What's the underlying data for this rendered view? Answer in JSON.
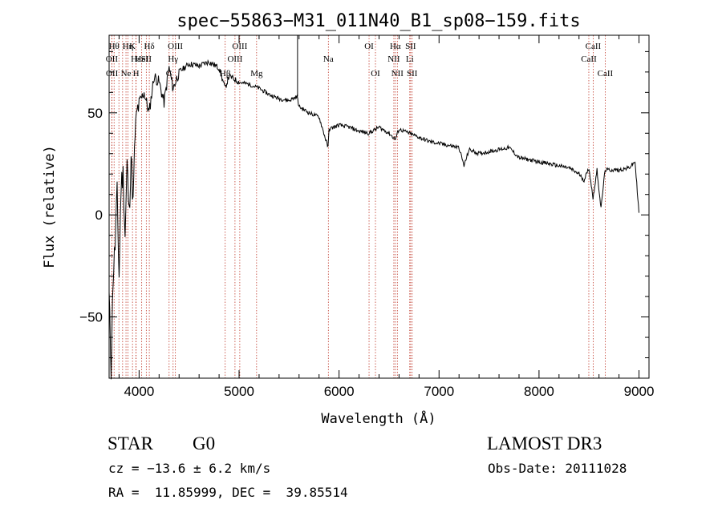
{
  "chart_data": {
    "type": "line",
    "title": "spec−55863−M31_011N40_B1_sp08−159.fits",
    "xlabel": "Wavelength (Å)",
    "ylabel": "Flux (relative)",
    "xlim": [
      3700,
      9100
    ],
    "ylim": [
      -80,
      88
    ],
    "xticks": [
      4000,
      5000,
      6000,
      7000,
      8000,
      9000
    ],
    "xtick_labels": [
      "4000",
      "5000",
      "6000",
      "7000",
      "8000",
      "9000"
    ],
    "yticks": [
      -50,
      0,
      50
    ],
    "ytick_labels": [
      "−50",
      "0",
      "50"
    ],
    "grid": false,
    "legend": "none",
    "series": [
      {
        "name": "spectrum",
        "x": [
          3700,
          3720,
          3740,
          3760,
          3780,
          3800,
          3820,
          3840,
          3860,
          3880,
          3900,
          3920,
          3940,
          3960,
          3980,
          4000,
          4050,
          4100,
          4150,
          4200,
          4250,
          4300,
          4340,
          4400,
          4500,
          4600,
          4700,
          4800,
          4860,
          4900,
          5000,
          5100,
          5200,
          5300,
          5400,
          5500,
          5580,
          5600,
          5700,
          5800,
          5890,
          5900,
          6000,
          6100,
          6200,
          6300,
          6400,
          6500,
          6563,
          6600,
          6700,
          6800,
          6900,
          7000,
          7100,
          7200,
          7250,
          7300,
          7400,
          7500,
          7600,
          7700,
          7800,
          7900,
          8000,
          8100,
          8200,
          8300,
          8400,
          8450,
          8500,
          8540,
          8580,
          8620,
          8660,
          8700,
          8800,
          8900,
          8960,
          9000
        ],
        "y": [
          -40,
          -75,
          -30,
          -15,
          10,
          -30,
          15,
          20,
          -10,
          25,
          0,
          30,
          5,
          40,
          50,
          55,
          60,
          50,
          68,
          65,
          55,
          72,
          62,
          70,
          74,
          73,
          75,
          72,
          62,
          68,
          65,
          64,
          62,
          59,
          57,
          56,
          58,
          53,
          50,
          48,
          33,
          42,
          44,
          43,
          41,
          40,
          43,
          40,
          37,
          42,
          40,
          38,
          36,
          35,
          34,
          33,
          24,
          32,
          30,
          31,
          32,
          33,
          28,
          27,
          26,
          25,
          24,
          23,
          20,
          17,
          23,
          8,
          22,
          3,
          22,
          22,
          22,
          23,
          26,
          1
        ]
      }
    ],
    "lines": [
      {
        "x": 3750,
        "label": "Hθ",
        "tier": 1
      },
      {
        "x": 3727,
        "label": "OII",
        "tier": 2
      },
      {
        "x": 3729,
        "label": "OII",
        "tier": 3
      },
      {
        "x": 3798,
        "label": "",
        "tier": 0
      },
      {
        "x": 3835,
        "label": "",
        "tier": 0
      },
      {
        "x": 3869,
        "label": "Ne",
        "tier": 3
      },
      {
        "x": 3889,
        "label": "Hη",
        "tier": 1
      },
      {
        "x": 3934,
        "label": "K",
        "tier": 1
      },
      {
        "x": 3968,
        "label": "Hε",
        "tier": 2
      },
      {
        "x": 3970,
        "label": "H",
        "tier": 3
      },
      {
        "x": 4026,
        "label": "HeI",
        "tier": 2
      },
      {
        "x": 4072,
        "label": "SII",
        "tier": 2
      },
      {
        "x": 4102,
        "label": "Hδ",
        "tier": 1
      },
      {
        "x": 4300,
        "label": "G",
        "tier": 3
      },
      {
        "x": 4340,
        "label": "Hγ",
        "tier": 2
      },
      {
        "x": 4363,
        "label": "OIII",
        "tier": 1
      },
      {
        "x": 4861,
        "label": "Hβ",
        "tier": 3
      },
      {
        "x": 4959,
        "label": "OIII",
        "tier": 2
      },
      {
        "x": 5007,
        "label": "OIII",
        "tier": 1
      },
      {
        "x": 5175,
        "label": "Mg",
        "tier": 3
      },
      {
        "x": 5893,
        "label": "Na",
        "tier": 2
      },
      {
        "x": 6300,
        "label": "OI",
        "tier": 1
      },
      {
        "x": 6364,
        "label": "OI",
        "tier": 3
      },
      {
        "x": 6548,
        "label": "NII",
        "tier": 2
      },
      {
        "x": 6563,
        "label": "Hα",
        "tier": 1
      },
      {
        "x": 6583,
        "label": "NII",
        "tier": 3
      },
      {
        "x": 6707,
        "label": "Li",
        "tier": 2
      },
      {
        "x": 6716,
        "label": "SII",
        "tier": 1
      },
      {
        "x": 6731,
        "label": "SII",
        "tier": 3
      },
      {
        "x": 8498,
        "label": "CaII",
        "tier": 2
      },
      {
        "x": 8542,
        "label": "CaII",
        "tier": 1
      },
      {
        "x": 8662,
        "label": "CaII",
        "tier": 3
      }
    ]
  },
  "info": {
    "class": "STAR",
    "subclass": "G0",
    "survey": "LAMOST DR3",
    "cz": "cz = −13.6 ± 6.2 km/s",
    "obs_date": "Obs-Date: 20111028",
    "radec": "RA =  11.85999, DEC =  39.85514"
  },
  "colors": {
    "axis": "#000000",
    "spectrum": "#000000",
    "line_marker": "#c0392b"
  }
}
